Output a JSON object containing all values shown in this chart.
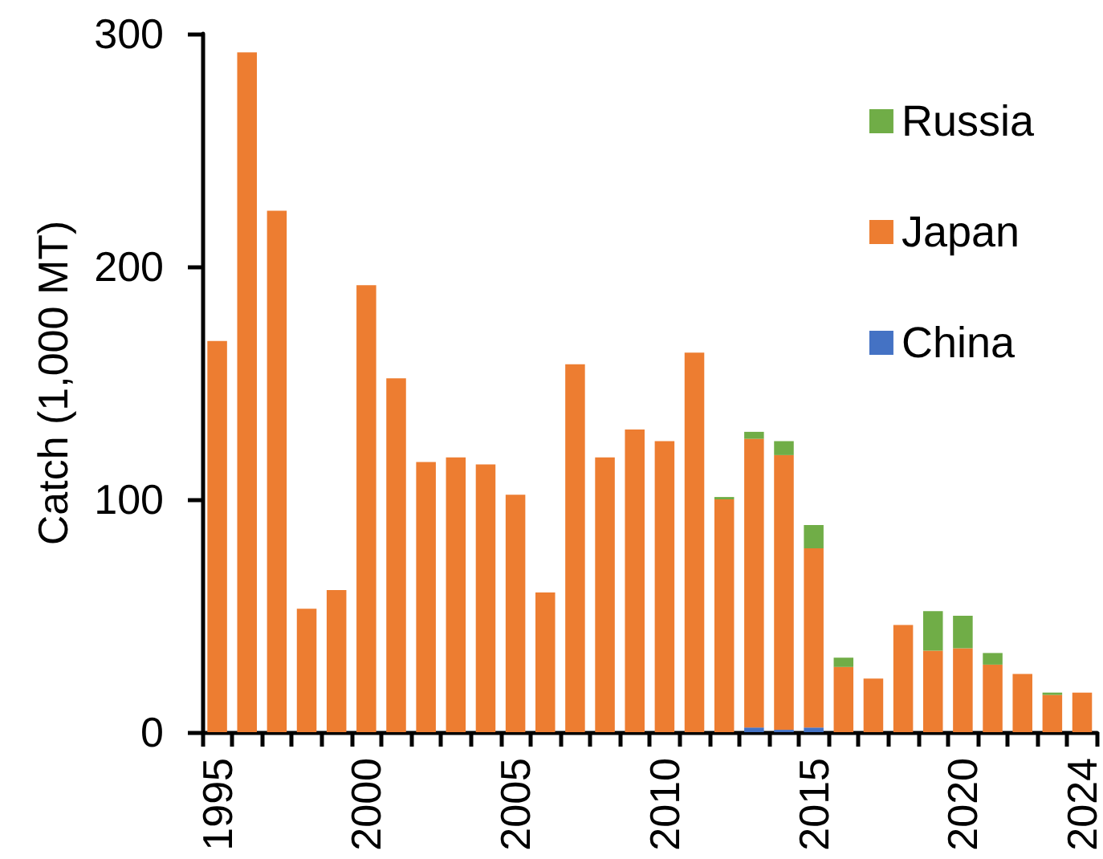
{
  "chart_data": {
    "type": "bar",
    "stacked": true,
    "ylabel": "Catch (1,000 MT)",
    "categories": [
      "1995",
      null,
      null,
      null,
      null,
      "2000",
      null,
      null,
      null,
      null,
      "2005",
      null,
      null,
      null,
      null,
      "2010",
      null,
      null,
      null,
      null,
      "2015",
      null,
      null,
      null,
      null,
      "2020",
      null,
      null,
      null,
      "2024"
    ],
    "series": [
      {
        "name": "China",
        "color": "#4472c4",
        "values": [
          null,
          null,
          null,
          null,
          null,
          null,
          null,
          null,
          null,
          null,
          null,
          null,
          null,
          null,
          null,
          null,
          null,
          null,
          2,
          1,
          2,
          null,
          null,
          null,
          null,
          null,
          null,
          null,
          null,
          null
        ]
      },
      {
        "name": "Japan",
        "color": "#ed7d31",
        "values": [
          168,
          292,
          224,
          53,
          61,
          192,
          152,
          116,
          118,
          115,
          102,
          60,
          158,
          118,
          130,
          125,
          163,
          100,
          124,
          118,
          77,
          28,
          23,
          46,
          35,
          36,
          29,
          25,
          16,
          17
        ]
      },
      {
        "name": "Russia",
        "color": "#70ad47",
        "values": [
          null,
          null,
          null,
          null,
          null,
          null,
          null,
          null,
          null,
          null,
          null,
          null,
          null,
          null,
          null,
          null,
          null,
          1,
          3,
          6,
          10,
          4,
          null,
          null,
          17,
          14,
          5,
          null,
          1,
          null
        ]
      }
    ],
    "ylim": [
      0,
      300
    ],
    "yticks": [
      0,
      100,
      200,
      300
    ],
    "grid": false,
    "legend": "top right"
  }
}
